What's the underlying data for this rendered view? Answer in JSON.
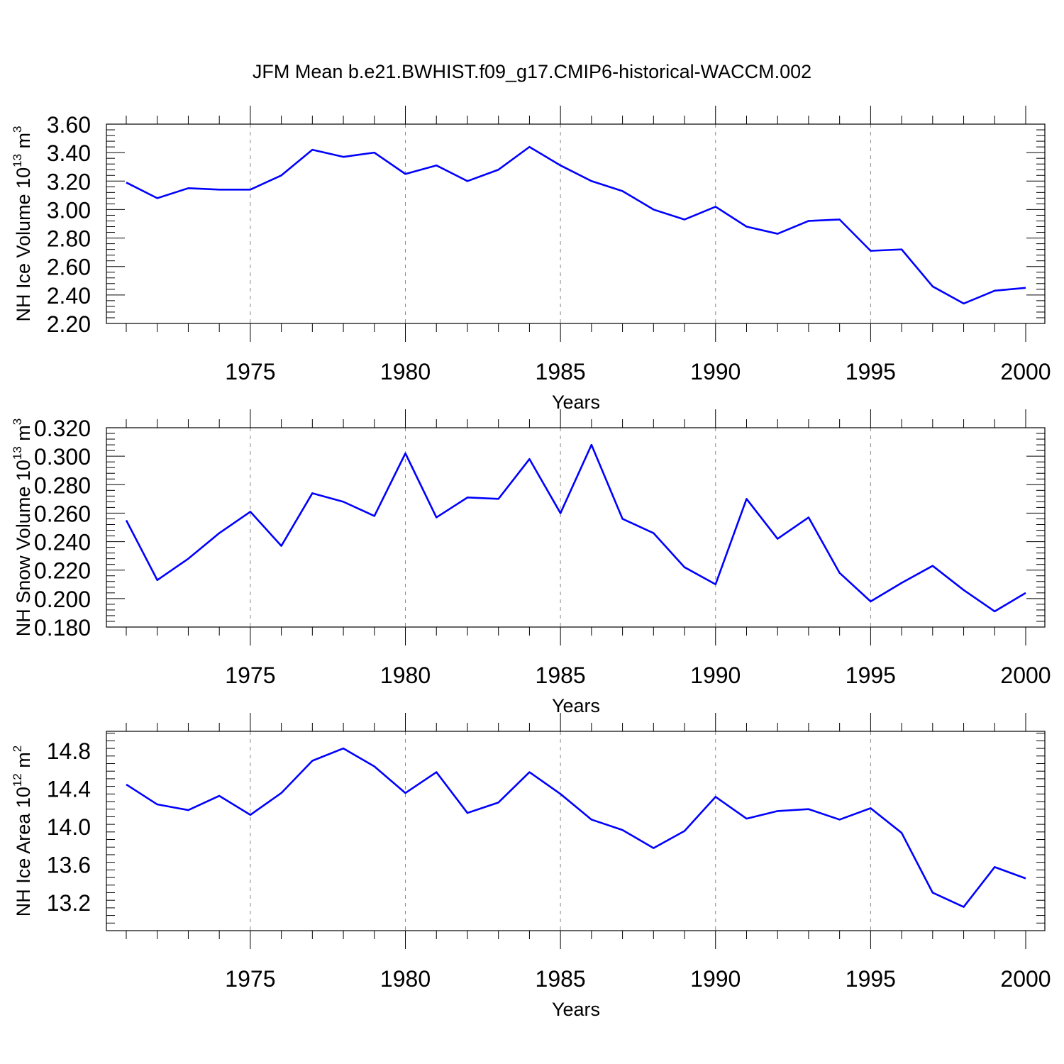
{
  "title": "JFM Mean b.e21.BWHIST.f09_g17.CMIP6-historical-WACCM.002",
  "line_color": "#0000ff",
  "chart_data": [
    {
      "type": "line",
      "title": "JFM Mean b.e21.BWHIST.f09_g17.CMIP6-historical-WACCM.002",
      "xlabel": "Years",
      "ylabel": {
        "base": "NH Ice Volume 10",
        "sup": "13",
        "unit": " m",
        "unit_sup": "3"
      },
      "xlim": [
        1971,
        2000
      ],
      "ylim": [
        2.2,
        3.6
      ],
      "yticks": [
        "2.20",
        "2.40",
        "2.60",
        "2.80",
        "3.00",
        "3.20",
        "3.40",
        "3.60"
      ],
      "xticks": [
        "1975",
        "1980",
        "1985",
        "1990",
        "1995",
        "2000"
      ],
      "grid": "vertical dashed at labeled years",
      "x": [
        1971,
        1972,
        1973,
        1974,
        1975,
        1976,
        1977,
        1978,
        1979,
        1980,
        1981,
        1982,
        1983,
        1984,
        1985,
        1986,
        1987,
        1988,
        1989,
        1990,
        1991,
        1992,
        1993,
        1994,
        1995,
        1996,
        1997,
        1998,
        1999,
        2000
      ],
      "values": [
        3.19,
        3.08,
        3.15,
        3.14,
        3.14,
        3.24,
        3.42,
        3.37,
        3.4,
        3.25,
        3.31,
        3.2,
        3.28,
        3.44,
        3.31,
        3.2,
        3.13,
        3.0,
        2.93,
        3.02,
        2.88,
        2.83,
        2.92,
        2.93,
        2.71,
        2.72,
        2.46,
        2.34,
        2.43,
        2.45
      ]
    },
    {
      "type": "line",
      "xlabel": "Years",
      "ylabel": {
        "base": "NH Snow Volume 10",
        "sup": "13",
        "unit": " m",
        "unit_sup": "3"
      },
      "xlim": [
        1971,
        2000
      ],
      "ylim": [
        0.18,
        0.32
      ],
      "yticks": [
        "0.180",
        "0.200",
        "0.220",
        "0.240",
        "0.260",
        "0.280",
        "0.300",
        "0.320"
      ],
      "xticks": [
        "1975",
        "1980",
        "1985",
        "1990",
        "1995",
        "2000"
      ],
      "grid": "vertical dashed at labeled years",
      "x": [
        1971,
        1972,
        1973,
        1974,
        1975,
        1976,
        1977,
        1978,
        1979,
        1980,
        1981,
        1982,
        1983,
        1984,
        1985,
        1986,
        1987,
        1988,
        1989,
        1990,
        1991,
        1992,
        1993,
        1994,
        1995,
        1996,
        1997,
        1998,
        1999,
        2000
      ],
      "values": [
        0.255,
        0.213,
        0.228,
        0.246,
        0.261,
        0.237,
        0.274,
        0.268,
        0.258,
        0.302,
        0.257,
        0.271,
        0.27,
        0.298,
        0.26,
        0.308,
        0.256,
        0.246,
        0.222,
        0.21,
        0.27,
        0.242,
        0.257,
        0.218,
        0.198,
        0.211,
        0.223,
        0.206,
        0.191,
        0.204
      ]
    },
    {
      "type": "line",
      "xlabel": "Years",
      "ylabel": {
        "base": "NH Ice Area 10",
        "sup": "12",
        "unit": " m",
        "unit_sup": "2"
      },
      "xlim": [
        1971,
        2000
      ],
      "ylim": [
        12.9,
        15.0
      ],
      "yticks": [
        "13.2",
        "13.6",
        "14.0",
        "14.4",
        "14.8"
      ],
      "xticks": [
        "1975",
        "1980",
        "1985",
        "1990",
        "1995",
        "2000"
      ],
      "grid": "vertical dashed at labeled years",
      "x": [
        1971,
        1972,
        1973,
        1974,
        1975,
        1976,
        1977,
        1978,
        1979,
        1980,
        1981,
        1982,
        1983,
        1984,
        1985,
        1986,
        1987,
        1988,
        1989,
        1990,
        1991,
        1992,
        1993,
        1994,
        1995,
        1996,
        1997,
        1998,
        1999,
        2000
      ],
      "values": [
        14.44,
        14.23,
        14.17,
        14.32,
        14.12,
        14.35,
        14.69,
        14.82,
        14.63,
        14.35,
        14.57,
        14.14,
        14.25,
        14.57,
        14.34,
        14.07,
        13.96,
        13.77,
        13.95,
        14.31,
        14.08,
        14.16,
        14.18,
        14.07,
        14.19,
        13.93,
        13.3,
        13.15,
        13.57,
        13.45
      ]
    }
  ]
}
